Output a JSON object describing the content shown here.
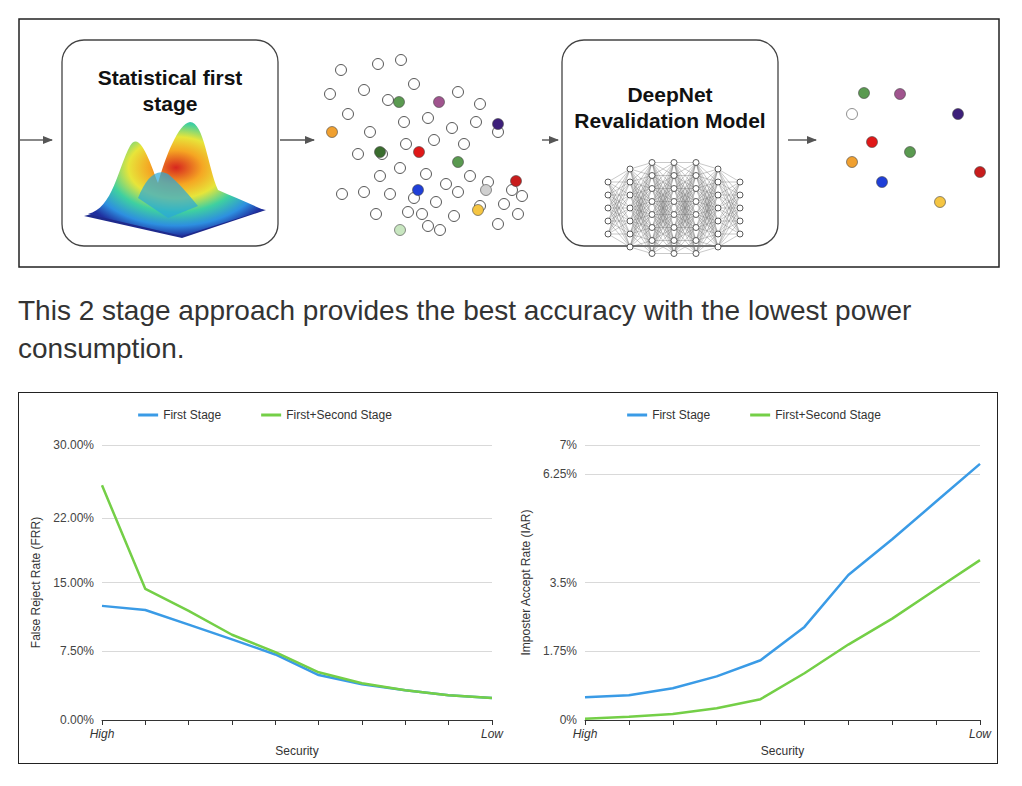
{
  "diagram": {
    "nodes": [
      {
        "label": "Statistical first stage"
      },
      {
        "label": "DeepNet Revalidation Model"
      }
    ]
  },
  "caption": "This 2 stage approach provides the best accuracy with the lowest power consumption.",
  "chart_data": [
    {
      "type": "line",
      "x_label": "Security",
      "y_label": "False Reject Rate (FRR)",
      "categories": [
        "High",
        null,
        null,
        null,
        null,
        null,
        null,
        null,
        null,
        "Low"
      ],
      "series": [
        {
          "name": "First Stage",
          "color": "#3a9be6",
          "values": [
            12.45,
            12.0,
            10.4,
            8.8,
            7.15,
            4.9,
            3.9,
            3.25,
            2.7,
            2.4
          ]
        },
        {
          "name": "First+Second Stage",
          "color": "#74cf47",
          "values": [
            25.6,
            14.3,
            11.9,
            9.3,
            7.4,
            5.2,
            4.0,
            3.25,
            2.7,
            2.4
          ]
        }
      ],
      "ylim": [
        0,
        30
      ],
      "yticks": [
        {
          "value": 0,
          "label": "0.00%"
        },
        {
          "value": 7.5,
          "label": "7.50%"
        },
        {
          "value": 15,
          "label": "15.00%"
        },
        {
          "value": 22,
          "label": "22.00%"
        },
        {
          "value": 30,
          "label": "30.00%"
        }
      ],
      "grid": true,
      "legend": "top"
    },
    {
      "type": "line",
      "x_label": "Security",
      "y_label": "Imposter Accept Rate (IAR)",
      "categories": [
        "High",
        null,
        null,
        null,
        null,
        null,
        null,
        null,
        null,
        "Low"
      ],
      "series": [
        {
          "name": "First Stage",
          "color": "#3a9be6",
          "values": [
            0.58,
            0.63,
            0.81,
            1.11,
            1.52,
            2.37,
            3.69,
            4.6,
            5.56,
            6.52
          ]
        },
        {
          "name": "First+Second Stage",
          "color": "#74cf47",
          "values": [
            0.03,
            0.08,
            0.15,
            0.3,
            0.53,
            1.19,
            1.92,
            2.58,
            3.33,
            4.07
          ]
        }
      ],
      "ylim": [
        0,
        7
      ],
      "yticks": [
        {
          "value": 0,
          "label": "0%"
        },
        {
          "value": 1.75,
          "label": "1.75%"
        },
        {
          "value": 3.5,
          "label": "3.5%"
        },
        {
          "value": 6.25,
          "label": "6.25%"
        },
        {
          "value": 7,
          "label": "7%"
        }
      ],
      "grid": true,
      "legend": "top"
    }
  ]
}
